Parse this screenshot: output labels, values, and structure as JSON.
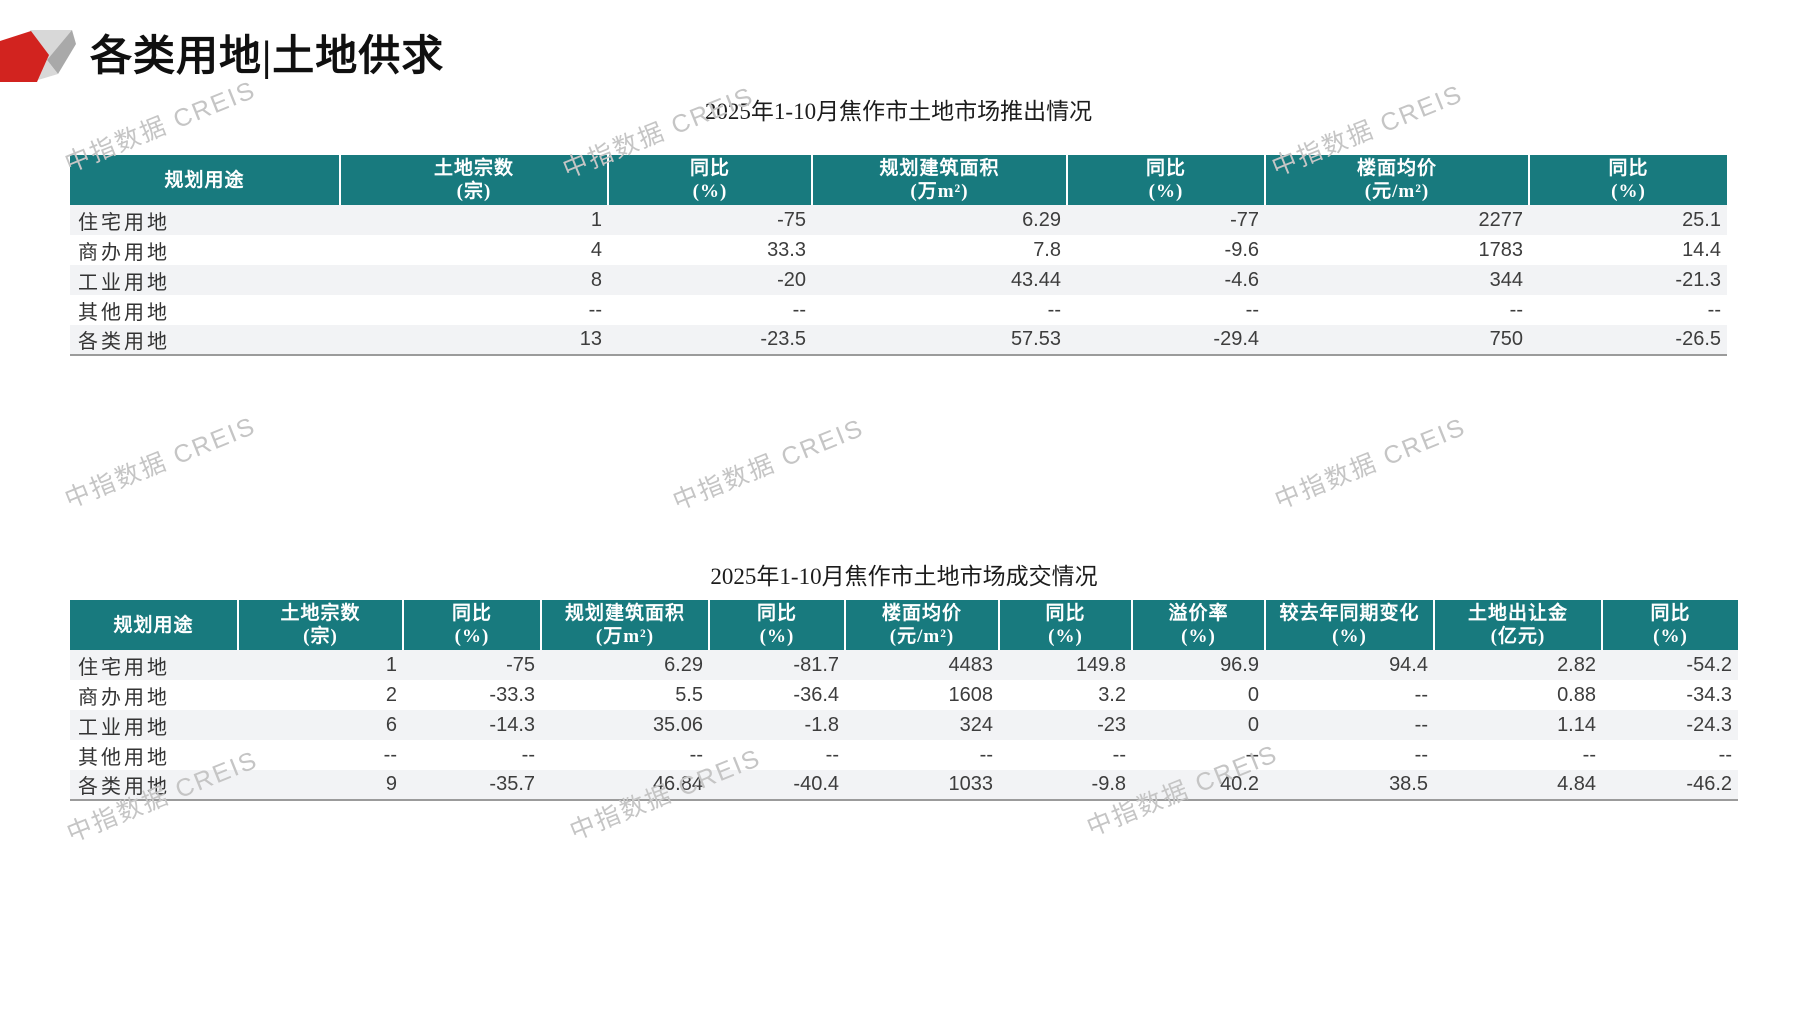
{
  "page": {
    "title": "各类用地|土地供求"
  },
  "watermark": "中指数据 CREIS",
  "colors": {
    "teal": "#187a7e",
    "logo_red": "#d2231f",
    "logo_gray_light": "#d8d8d8",
    "logo_gray_mid": "#a9a9a9",
    "stripe": "#f2f3f5",
    "watermark": "#c5c5c5"
  },
  "tables": [
    {
      "title": "2025年1-10月焦作市土地市场推出情况",
      "columns": [
        {
          "label": "规划用途",
          "unit": ""
        },
        {
          "label": "土地宗数",
          "unit": "(宗)"
        },
        {
          "label": "同比",
          "unit": "(%)"
        },
        {
          "label": "规划建筑面积",
          "unit": "(万m²)"
        },
        {
          "label": "同比",
          "unit": "(%)"
        },
        {
          "label": "楼面均价",
          "unit": "(元/m²)"
        },
        {
          "label": "同比",
          "unit": "(%)"
        }
      ],
      "rows": [
        [
          "住宅用地",
          "1",
          "-75",
          "6.29",
          "-77",
          "2277",
          "25.1"
        ],
        [
          "商办用地",
          "4",
          "33.3",
          "7.8",
          "-9.6",
          "1783",
          "14.4"
        ],
        [
          "工业用地",
          "8",
          "-20",
          "43.44",
          "-4.6",
          "344",
          "-21.3"
        ],
        [
          "其他用地",
          "--",
          "--",
          "--",
          "--",
          "--",
          "--"
        ],
        [
          "各类用地",
          "13",
          "-23.5",
          "57.53",
          "-29.4",
          "750",
          "-26.5"
        ]
      ]
    },
    {
      "title": "2025年1-10月焦作市土地市场成交情况",
      "columns": [
        {
          "label": "规划用途",
          "unit": ""
        },
        {
          "label": "土地宗数",
          "unit": "(宗)"
        },
        {
          "label": "同比",
          "unit": "(%)"
        },
        {
          "label": "规划建筑面积",
          "unit": "(万m²)"
        },
        {
          "label": "同比",
          "unit": "(%)"
        },
        {
          "label": "楼面均价",
          "unit": "(元/m²)"
        },
        {
          "label": "同比",
          "unit": "(%)"
        },
        {
          "label": "溢价率",
          "unit": "(%)"
        },
        {
          "label": "较去年同期变化",
          "unit": "(%)"
        },
        {
          "label": "土地出让金",
          "unit": "(亿元)"
        },
        {
          "label": "同比",
          "unit": "(%)"
        }
      ],
      "rows": [
        [
          "住宅用地",
          "1",
          "-75",
          "6.29",
          "-81.7",
          "4483",
          "149.8",
          "96.9",
          "94.4",
          "2.82",
          "-54.2"
        ],
        [
          "商办用地",
          "2",
          "-33.3",
          "5.5",
          "-36.4",
          "1608",
          "3.2",
          "0",
          "--",
          "0.88",
          "-34.3"
        ],
        [
          "工业用地",
          "6",
          "-14.3",
          "35.06",
          "-1.8",
          "324",
          "-23",
          "0",
          "--",
          "1.14",
          "-24.3"
        ],
        [
          "其他用地",
          "--",
          "--",
          "--",
          "--",
          "--",
          "--",
          "--",
          "--",
          "--",
          "--"
        ],
        [
          "各类用地",
          "9",
          "-35.7",
          "46.84",
          "-40.4",
          "1033",
          "-9.8",
          "40.2",
          "38.5",
          "4.84",
          "-46.2"
        ]
      ]
    }
  ]
}
